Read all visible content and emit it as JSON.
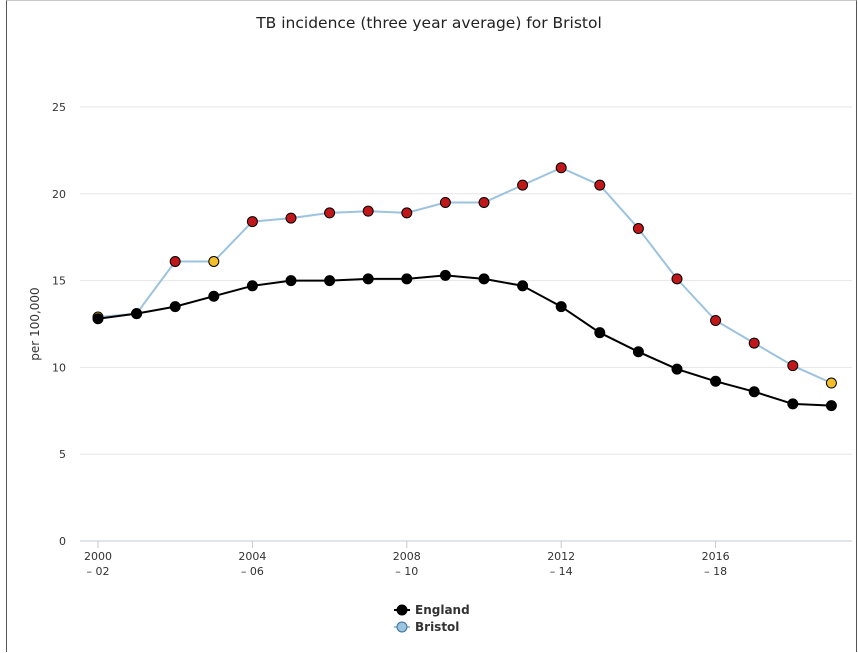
{
  "chart_data": {
    "type": "line",
    "title": "TB incidence (three year average) for Bristol",
    "ylabel": "per 100,000",
    "xlabel": "",
    "ylim": [
      0,
      25
    ],
    "yticks": [
      0,
      5,
      10,
      15,
      20,
      25
    ],
    "x": [
      "2000 – 02",
      "2001 – 03",
      "2002 – 04",
      "2003 – 05",
      "2004 – 06",
      "2005 – 07",
      "2006 – 08",
      "2007 – 09",
      "2008 – 10",
      "2009 – 11",
      "2010 – 12",
      "2011 – 13",
      "2012 – 14",
      "2013 – 15",
      "2014 – 16",
      "2015 – 17",
      "2016 – 18",
      "2017 – 19",
      "2018 – 20",
      "2019 – 21"
    ],
    "xtick_labels": [
      {
        "index": 0,
        "line1": "2000",
        "line2": "– 02"
      },
      {
        "index": 4,
        "line1": "2004",
        "line2": "– 06"
      },
      {
        "index": 8,
        "line1": "2008",
        "line2": "– 10"
      },
      {
        "index": 12,
        "line1": "2012",
        "line2": "– 14"
      },
      {
        "index": 16,
        "line1": "2016",
        "line2": "– 18"
      }
    ],
    "series": [
      {
        "name": "England",
        "line_color": "#000000",
        "values": [
          12.8,
          13.1,
          13.5,
          14.1,
          14.7,
          15.0,
          15.0,
          15.1,
          15.1,
          15.3,
          15.1,
          14.7,
          13.5,
          12.0,
          10.9,
          9.9,
          9.2,
          8.6,
          7.9,
          7.8
        ]
      },
      {
        "name": "Bristol",
        "line_color": "#9cc3df",
        "legend_marker_color": "#9cc3df",
        "values": [
          12.9,
          13.1,
          16.1,
          16.1,
          18.4,
          18.6,
          18.9,
          19.0,
          18.9,
          19.5,
          19.5,
          20.5,
          21.5,
          20.5,
          18.0,
          15.1,
          12.7,
          11.4,
          10.1,
          9.1
        ],
        "point_status": [
          "similar",
          "similar",
          "higher",
          "similar",
          "higher",
          "higher",
          "higher",
          "higher",
          "higher",
          "higher",
          "higher",
          "higher",
          "higher",
          "higher",
          "higher",
          "higher",
          "higher",
          "higher",
          "higher",
          "similar"
        ]
      }
    ],
    "status_colors": {
      "higher": "#c0171a",
      "similar": "#f2bf2a"
    },
    "grid": true,
    "legend_position": "bottom-center"
  }
}
